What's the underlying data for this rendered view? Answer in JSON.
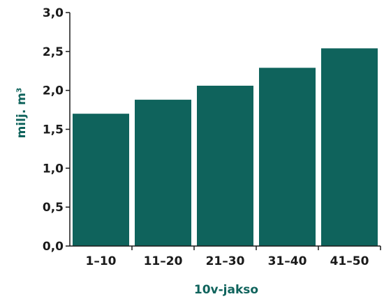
{
  "chart_data": {
    "type": "bar",
    "xlabel": "10v-jakso",
    "ylabel": "milj. m³",
    "categories": [
      "1–10",
      "11–20",
      "21–30",
      "31–40",
      "41–50"
    ],
    "values": [
      1.7,
      1.88,
      2.06,
      2.29,
      2.54
    ],
    "ylim": [
      0,
      3
    ],
    "yticks": [
      "0,0",
      "0,5",
      "1,0",
      "1,5",
      "2,0",
      "2,5",
      "3,0"
    ],
    "grid": false,
    "legend": "none",
    "colors": {
      "bar": "#0f635c",
      "axis": "#1a1a1a",
      "title": "#0f635c"
    }
  }
}
